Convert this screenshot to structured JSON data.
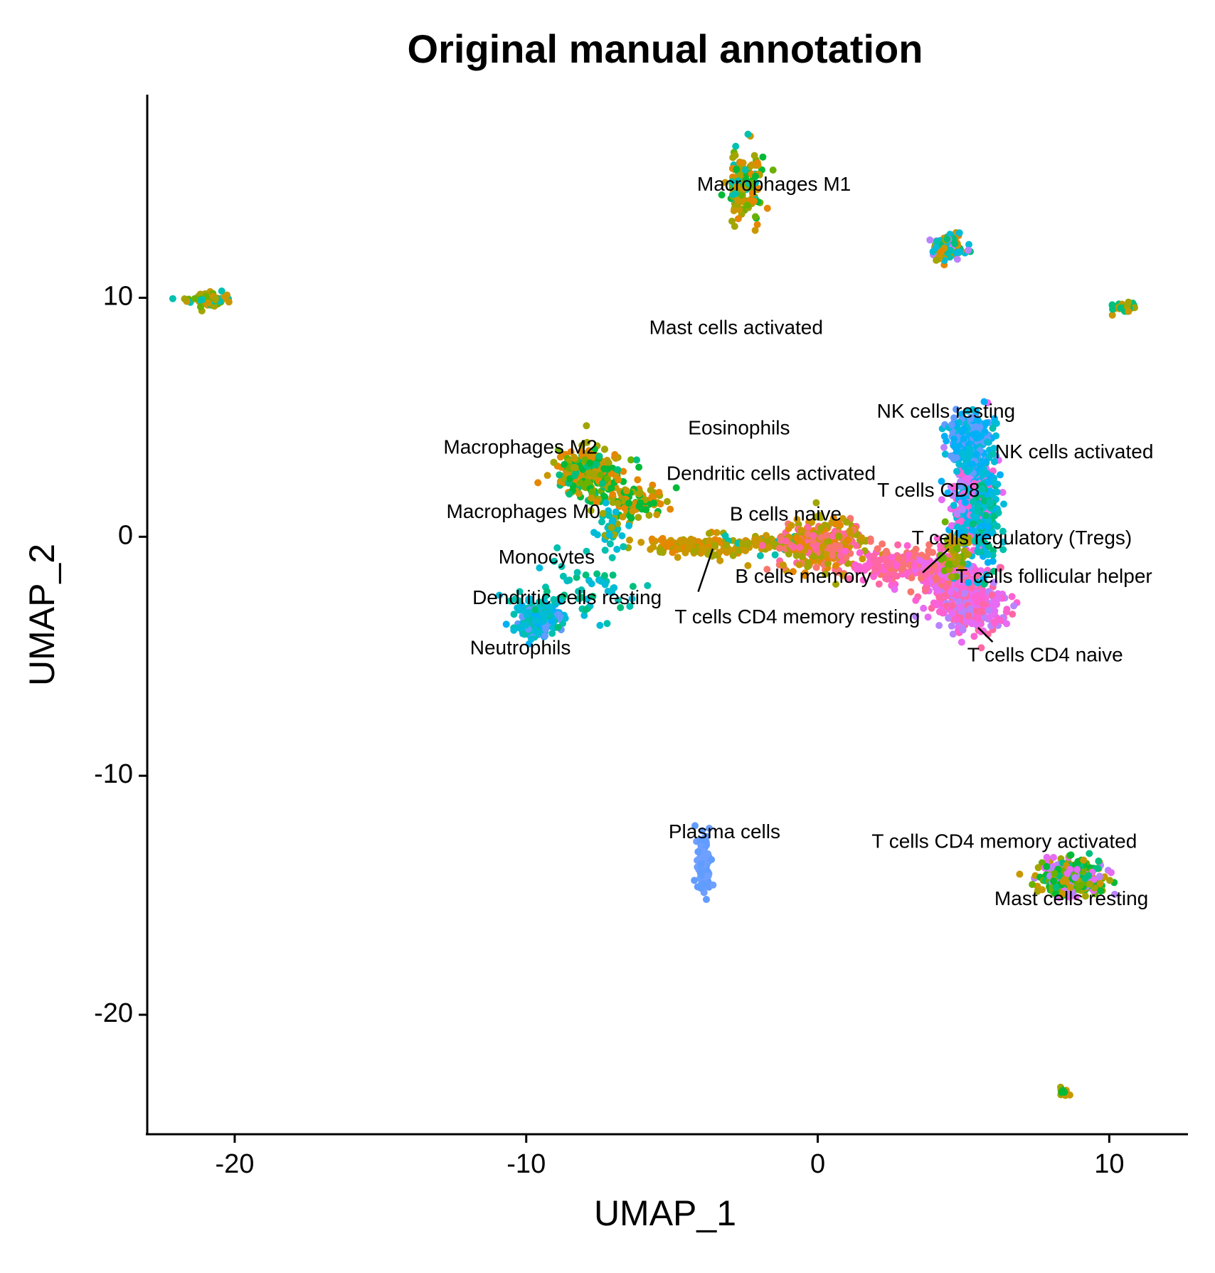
{
  "chart_data": {
    "type": "scatter",
    "title": "Original manual annotation",
    "xlabel": "UMAP_1",
    "ylabel": "UMAP_2",
    "xlim": [
      -23,
      12.7
    ],
    "ylim": [
      -25,
      18.5
    ],
    "xticks": [
      -20,
      -10,
      0,
      10
    ],
    "yticks": [
      -20,
      -10,
      0,
      10
    ],
    "xtick_labels": [
      "-20",
      "-10",
      "0",
      "10"
    ],
    "ytick_labels": [
      "-20",
      "-10",
      "0",
      "10"
    ],
    "grid": false,
    "legend": "none",
    "palette": [
      "#F8766D",
      "#E58700",
      "#C99800",
      "#A3A500",
      "#6BB100",
      "#00BA38",
      "#00BF7D",
      "#00C0AF",
      "#00BCD8",
      "#00B0F6",
      "#619CFF",
      "#B983FF",
      "#E76BF3",
      "#FD61D1",
      "#FF67A4"
    ],
    "clusters": [
      {
        "id": "c1",
        "cx": -20.9,
        "cy": 9.9,
        "sx": 0.35,
        "sy": 0.15,
        "n": 70,
        "colors": [
          "#C99800",
          "#A3A500",
          "#6BB100",
          "#00C0AF"
        ]
      },
      {
        "id": "c2",
        "cx": -2.5,
        "cy": 14.8,
        "sx": 0.3,
        "sy": 0.7,
        "n": 150,
        "colors": [
          "#6BB100",
          "#A3A500",
          "#00BA38",
          "#00C0AF",
          "#C99800",
          "#E58700"
        ]
      },
      {
        "id": "c3",
        "cx": 4.5,
        "cy": 12.1,
        "sx": 0.28,
        "sy": 0.3,
        "n": 110,
        "colors": [
          "#A3A500",
          "#C99800",
          "#00BF7D",
          "#00C0AF",
          "#B983FF",
          "#E58700",
          "#00BCD8"
        ]
      },
      {
        "id": "c4",
        "cx": 10.5,
        "cy": 9.6,
        "sx": 0.22,
        "sy": 0.12,
        "n": 45,
        "colors": [
          "#C99800",
          "#A3A500",
          "#00BF7D"
        ]
      },
      {
        "id": "c5",
        "cx": -7.8,
        "cy": 2.7,
        "sx": 0.55,
        "sy": 0.5,
        "n": 260,
        "colors": [
          "#00BA38",
          "#6BB100",
          "#A3A500",
          "#C99800",
          "#00BF7D",
          "#E58700"
        ]
      },
      {
        "id": "c6",
        "cx": -6.4,
        "cy": 1.4,
        "sx": 0.6,
        "sy": 0.35,
        "n": 90,
        "colors": [
          "#C99800",
          "#A3A500",
          "#E58700",
          "#00BA38"
        ]
      },
      {
        "id": "c7",
        "cx": -3.9,
        "cy": -0.4,
        "sx": 0.95,
        "sy": 0.22,
        "n": 150,
        "colors": [
          "#C99800",
          "#A3A500",
          "#E58700"
        ]
      },
      {
        "id": "c8",
        "cx": -1.4,
        "cy": -0.3,
        "sx": 0.8,
        "sy": 0.2,
        "n": 60,
        "colors": [
          "#C99800",
          "#A3A500",
          "#00C0AF"
        ]
      },
      {
        "id": "c9",
        "cx": 0.2,
        "cy": -0.3,
        "sx": 0.75,
        "sy": 0.55,
        "n": 330,
        "colors": [
          "#F8766D",
          "#E58700",
          "#FF67A4",
          "#C99800",
          "#A3A500"
        ]
      },
      {
        "id": "c10",
        "cx": 2.6,
        "cy": -1.2,
        "sx": 0.65,
        "sy": 0.35,
        "n": 130,
        "colors": [
          "#F8766D",
          "#FF67A4",
          "#FD61D1"
        ]
      },
      {
        "id": "c11",
        "cx": 4.4,
        "cy": -1.6,
        "sx": 0.55,
        "sy": 0.6,
        "n": 260,
        "colors": [
          "#F8766D",
          "#FF67A4",
          "#FD61D1",
          "#E76BF3"
        ]
      },
      {
        "id": "c12",
        "cx": 5.3,
        "cy": -2.8,
        "sx": 0.5,
        "sy": 0.55,
        "n": 320,
        "colors": [
          "#E76BF3",
          "#FD61D1",
          "#B983FF",
          "#FF67A4"
        ]
      },
      {
        "id": "c13",
        "cx": 5.3,
        "cy": 1.5,
        "sx": 0.38,
        "sy": 1.1,
        "n": 360,
        "colors": [
          "#FD61D1",
          "#E76BF3",
          "#00B0F6",
          "#00BCD8",
          "#B983FF"
        ]
      },
      {
        "id": "c14",
        "cx": 5.2,
        "cy": 4.0,
        "sx": 0.4,
        "sy": 0.55,
        "n": 210,
        "colors": [
          "#00B0F6",
          "#00BCD8",
          "#619CFF"
        ]
      },
      {
        "id": "c15",
        "cx": 5.8,
        "cy": 1.0,
        "sx": 0.25,
        "sy": 1.0,
        "n": 120,
        "colors": [
          "#00B0F6",
          "#00BCD8",
          "#00BF7D",
          "#00C0AF"
        ]
      },
      {
        "id": "c16",
        "cx": 4.7,
        "cy": -0.6,
        "sx": 0.25,
        "sy": 0.5,
        "n": 50,
        "colors": [
          "#A3A500",
          "#C99800",
          "#6BB100"
        ]
      },
      {
        "id": "c17",
        "cx": -9.7,
        "cy": -3.5,
        "sx": 0.4,
        "sy": 0.35,
        "n": 190,
        "colors": [
          "#00BCD8",
          "#00C0AF",
          "#00B0F6",
          "#619CFF"
        ]
      },
      {
        "id": "c18",
        "cx": -8.2,
        "cy": -2.4,
        "sx": 1.0,
        "sy": 0.7,
        "n": 70,
        "colors": [
          "#00C0AF",
          "#00BCD8",
          "#00BF7D"
        ]
      },
      {
        "id": "c19",
        "cx": -7.1,
        "cy": 0.3,
        "sx": 0.25,
        "sy": 0.5,
        "n": 40,
        "colors": [
          "#00C0AF",
          "#00BCD8",
          "#A3A500"
        ]
      },
      {
        "id": "c20",
        "cx": -3.9,
        "cy": -13.5,
        "sx": 0.12,
        "sy": 0.75,
        "n": 80,
        "colors": [
          "#619CFF",
          "#6FA0FF"
        ]
      },
      {
        "id": "c21",
        "cx": 8.7,
        "cy": -14.3,
        "sx": 0.55,
        "sy": 0.38,
        "n": 330,
        "colors": [
          "#B983FF",
          "#A3A500",
          "#6BB100",
          "#00BA38",
          "#C99800",
          "#00BF7D",
          "#E76BF3"
        ]
      },
      {
        "id": "c22",
        "cx": 8.4,
        "cy": -23.2,
        "sx": 0.1,
        "sy": 0.08,
        "n": 15,
        "colors": [
          "#C99800",
          "#A3A500",
          "#00BA38"
        ]
      }
    ],
    "labels": [
      {
        "text": "Macrophages M1",
        "x": -1.5,
        "y": 14.7
      },
      {
        "text": "Mast cells activated",
        "x": -2.8,
        "y": 8.7
      },
      {
        "text": "NK cells resting",
        "x": 4.4,
        "y": 5.2
      },
      {
        "text": "Eosinophils",
        "x": -2.7,
        "y": 4.5
      },
      {
        "text": "NK cells activated",
        "x": 8.8,
        "y": 3.5
      },
      {
        "text": "Macrophages M2",
        "x": -10.2,
        "y": 3.7
      },
      {
        "text": "Dendritic cells activated",
        "x": -1.6,
        "y": 2.6
      },
      {
        "text": "T cells CD8",
        "x": 3.8,
        "y": 1.9
      },
      {
        "text": "Macrophages M0",
        "x": -10.1,
        "y": 1.0
      },
      {
        "text": "B cells naive",
        "x": -1.1,
        "y": 0.9
      },
      {
        "text": "T cells regulatory (Tregs)",
        "x": 7.0,
        "y": -0.1
      },
      {
        "text": "Monocytes",
        "x": -9.3,
        "y": -0.9
      },
      {
        "text": "B cells memory",
        "x": -0.5,
        "y": -1.7
      },
      {
        "text": "T cells follicular helper",
        "x": 8.1,
        "y": -1.7
      },
      {
        "text": "Dendritic cells resting",
        "x": -8.6,
        "y": -2.6
      },
      {
        "text": "T cells CD4 memory resting",
        "x": -0.7,
        "y": -3.4
      },
      {
        "text": "Neutrophils",
        "x": -10.2,
        "y": -4.7
      },
      {
        "text": "T cells CD4 naive",
        "x": 7.8,
        "y": -5.0
      },
      {
        "text": "Plasma cells",
        "x": -3.2,
        "y": -12.4
      },
      {
        "text": "T cells CD4 memory activated",
        "x": 6.4,
        "y": -12.8
      },
      {
        "text": "Mast cells resting",
        "x": 8.7,
        "y": -15.2
      }
    ],
    "leader_lines": [
      {
        "from": [
          -4.1,
          -2.3
        ],
        "to": [
          -3.6,
          -0.5
        ]
      },
      {
        "from": [
          3.6,
          -1.5
        ],
        "to": [
          4.5,
          -0.5
        ]
      },
      {
        "from": [
          5.5,
          -3.8
        ],
        "to": [
          6.0,
          -4.4
        ]
      }
    ]
  }
}
